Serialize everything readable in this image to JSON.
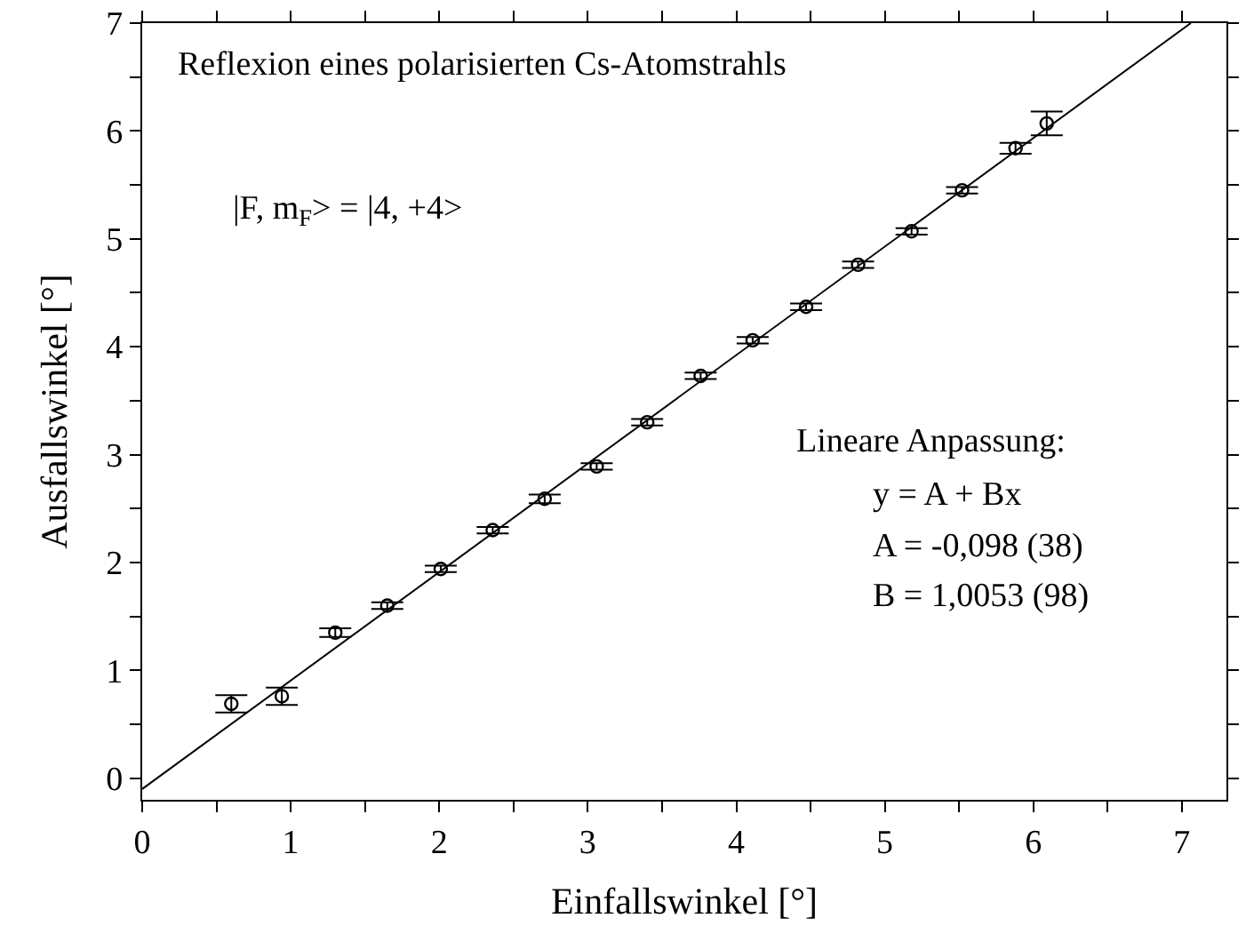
{
  "chart_data": {
    "type": "scatter",
    "xlabel": "Einfallswinkel [°]",
    "ylabel": "Ausfallswinkel [°]",
    "annotations": [
      "Reflexion eines polarisierten Cs-Atomstrahls",
      "|F, m$_{F}$> = |4, +4>",
      "Lineare Anpassung:",
      "y = A + Bx",
      "A = -0,098 (38)",
      "B = 1,0053 (98)"
    ],
    "xlim": [
      0,
      7.3
    ],
    "ylim": [
      -0.2,
      7
    ],
    "xticks": [
      0,
      {
        "value": 0.5,
        "label": null
      },
      1,
      {
        "value": 1.5,
        "label": null
      },
      2,
      {
        "value": 2.5,
        "label": null
      },
      3,
      {
        "value": 3.5,
        "label": null
      },
      4,
      {
        "value": 4.5,
        "label": null
      },
      5,
      {
        "value": 5.5,
        "label": null
      },
      6,
      {
        "value": 6.5,
        "label": null
      },
      7
    ],
    "yticks": [
      0,
      {
        "value": 0.5,
        "label": null
      },
      1,
      {
        "value": 1.5,
        "label": null
      },
      2,
      {
        "value": 2.5,
        "label": null
      },
      3,
      {
        "value": 3.5,
        "label": null
      },
      4,
      {
        "value": 4.5,
        "label": null
      },
      5,
      {
        "value": 5.5,
        "label": null
      },
      6,
      {
        "value": 6.5,
        "label": null
      },
      7
    ],
    "series": [
      {
        "marker": "circle",
        "color": "#000000",
        "x": [
          0.6,
          0.94,
          1.3,
          1.65,
          2.01,
          2.36,
          2.71,
          3.06,
          3.4,
          3.76,
          4.11,
          4.47,
          4.82,
          5.18,
          5.52,
          5.88,
          6.09
        ],
        "values": [
          0.69,
          0.76,
          1.35,
          1.6,
          1.94,
          2.3,
          2.59,
          2.89,
          3.3,
          3.73,
          4.06,
          4.37,
          4.76,
          5.07,
          5.45,
          5.84,
          6.07
        ],
        "errors": [
          0.08,
          0.08,
          0.04,
          0.03,
          0.03,
          0.03,
          0.04,
          0.03,
          0.03,
          0.03,
          0.03,
          0.03,
          0.03,
          0.03,
          0.03,
          0.05,
          0.11
        ]
      },
      {
        "type": "line",
        "color": "#000000",
        "line_style": "solid",
        "marker": "none",
        "x": [
          0,
          7.06
        ],
        "values": [
          -0.1,
          7.0
        ]
      }
    ]
  }
}
